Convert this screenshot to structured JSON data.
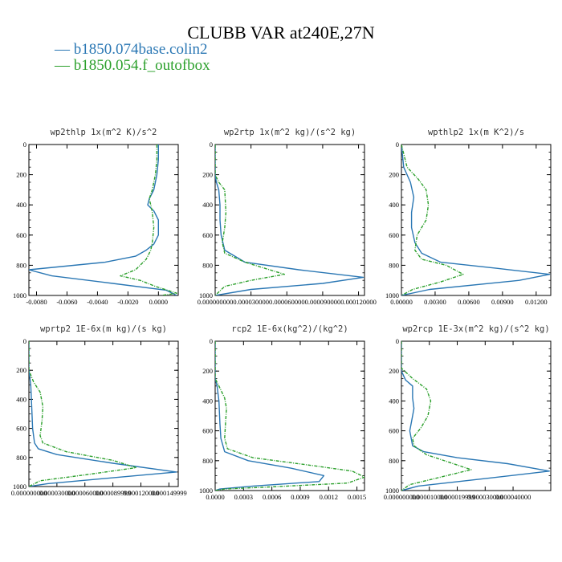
{
  "title": "CLUBB VAR at240E,27N",
  "legend": [
    {
      "label": "b1850.074base.colin2",
      "color": "#2a77b4"
    },
    {
      "label": "b1850.054.f_outofbox",
      "color": "#2ca02c"
    }
  ],
  "chart_data": [
    {
      "type": "line",
      "title": "wp2thlp  1x(m^2 K)/s^2",
      "xlim": [
        -0.0085,
        0.0013
      ],
      "ylim": [
        1000,
        0
      ],
      "xticks": [
        -0.008,
        -0.006,
        -0.004,
        -0.002,
        0.0
      ],
      "xtick_labels": [
        "-0.0080",
        "-0.0060",
        "-0.0040",
        "-0.0020",
        "0.0000"
      ],
      "yticks": [
        0,
        200,
        400,
        600,
        800,
        1000
      ],
      "ytick_labels": [
        "0",
        "200",
        "400",
        "600",
        "800",
        "1000"
      ],
      "series": [
        {
          "color": "#2a77b4",
          "dashed": false,
          "x": [
            0.0,
            0.0,
            -0.0001,
            -0.0003,
            -0.0006,
            -0.0007,
            -0.0003,
            0.0,
            0.0,
            -0.0003,
            -0.0008,
            -0.0015,
            -0.0035,
            -0.0085,
            -0.007,
            -0.003,
            0.0005,
            0.0012
          ],
          "y": [
            0,
            100,
            200,
            300,
            360,
            400,
            440,
            500,
            600,
            660,
            700,
            740,
            780,
            830,
            870,
            920,
            965,
            1000
          ]
        },
        {
          "color": "#2ca02c",
          "dashed": true,
          "x": [
            -0.0001,
            -0.0001,
            -0.0002,
            -0.0004,
            -0.0006,
            -0.0005,
            -0.0004,
            -0.0003,
            -0.0004,
            -0.0005,
            -0.0008,
            -0.0015,
            -0.0025,
            -0.0012,
            -0.0002,
            0.0012,
            0.0002
          ],
          "y": [
            0,
            100,
            200,
            300,
            360,
            400,
            450,
            550,
            650,
            700,
            760,
            830,
            870,
            900,
            940,
            985,
            1000
          ]
        }
      ]
    },
    {
      "type": "line",
      "title": "wp2rtp  1x(m^2 kg)/(s^2 kg)",
      "xlim": [
        0.0,
        0.000125
      ],
      "ylim": [
        1000,
        0
      ],
      "xticks": [
        0.0,
        3e-05,
        6e-05,
        9e-05,
        0.00012
      ],
      "xtick_labels": [
        "0.000000000",
        "0.000030000",
        "0.000060000",
        "0.000090000",
        "0.000120000"
      ],
      "yticks": [
        0,
        200,
        400,
        600,
        800,
        1000
      ],
      "ytick_labels": [
        "0",
        "200",
        "400",
        "600",
        "800",
        "1000"
      ],
      "series": [
        {
          "color": "#2a77b4",
          "dashed": false,
          "x": [
            0.0,
            0.0,
            1e-06,
            3e-06,
            4e-06,
            4e-06,
            5e-06,
            8e-06,
            2.5e-05,
            7e-05,
            0.000124,
            9e-05,
            3e-05,
            0.0
          ],
          "y": [
            0,
            200,
            250,
            300,
            400,
            500,
            600,
            700,
            780,
            830,
            880,
            920,
            960,
            1000
          ]
        },
        {
          "color": "#2ca02c",
          "dashed": true,
          "x": [
            0.0,
            0.0,
            3e-06,
            8e-06,
            9e-06,
            8e-06,
            6e-06,
            8e-06,
            2.5e-05,
            5.8e-05,
            3e-05,
            8e-06,
            0.0
          ],
          "y": [
            0,
            200,
            250,
            300,
            450,
            550,
            650,
            720,
            780,
            860,
            900,
            940,
            1000
          ]
        }
      ]
    },
    {
      "type": "line",
      "title": "wpthlp2  1x(m K^2)/s",
      "xlim": [
        0.0,
        0.0133
      ],
      "ylim": [
        1000,
        0
      ],
      "xticks": [
        0.0,
        0.003,
        0.006,
        0.009,
        0.012
      ],
      "xtick_labels": [
        "0.00000",
        "0.00300",
        "0.00600",
        "0.00900",
        "0.01200"
      ],
      "yticks": [
        0,
        200,
        400,
        600,
        800,
        1000
      ],
      "ytick_labels": [
        "0",
        "200",
        "400",
        "600",
        "800",
        "1000"
      ],
      "series": [
        {
          "color": "#2a77b4",
          "dashed": false,
          "x": [
            0.0,
            0.0002,
            0.0008,
            0.0011,
            0.0009,
            0.0009,
            0.0012,
            0.0018,
            0.0035,
            0.0085,
            0.0132,
            0.0105,
            0.0025,
            0.0
          ],
          "y": [
            0,
            150,
            250,
            350,
            450,
            550,
            650,
            720,
            780,
            820,
            860,
            900,
            960,
            1000
          ]
        },
        {
          "color": "#2ca02c",
          "dashed": true,
          "x": [
            0.0,
            0.0005,
            0.0015,
            0.0022,
            0.0024,
            0.0022,
            0.0014,
            0.0012,
            0.0018,
            0.004,
            0.0055,
            0.0035,
            0.001,
            0.0
          ],
          "y": [
            0,
            150,
            230,
            300,
            400,
            500,
            600,
            700,
            760,
            800,
            860,
            910,
            960,
            1000
          ]
        }
      ]
    },
    {
      "type": "line",
      "title": "wprtp2  1E-6x(m kg)/(s kg)",
      "xlim": [
        0.0,
        0.00016
      ],
      "ylim": [
        1000,
        0
      ],
      "xticks": [
        0.0,
        3e-05,
        6e-05,
        9e-05,
        0.00012,
        0.00015
      ],
      "xtick_labels": [
        "0.000000000",
        "0.000030000",
        "0.000060000",
        "0.000089999",
        "0.000120000",
        "0.000149999"
      ],
      "yticks": [
        0,
        200,
        400,
        600,
        800,
        1000
      ],
      "ytick_labels": [
        "0",
        "200",
        "400",
        "600",
        "800",
        "1000"
      ],
      "series": [
        {
          "color": "#2a77b4",
          "dashed": false,
          "x": [
            0.0,
            0.0,
            2e-06,
            3e-06,
            4e-06,
            6e-06,
            1e-05,
            3e-05,
            9e-05,
            0.000158,
            9e-05,
            2e-05,
            0.0
          ],
          "y": [
            0,
            200,
            300,
            450,
            600,
            700,
            740,
            780,
            840,
            900,
            940,
            980,
            1000
          ]
        },
        {
          "color": "#2ca02c",
          "dashed": true,
          "x": [
            0.0,
            0.0,
            5e-06,
            1.2e-05,
            1.5e-05,
            1.4e-05,
            1.2e-05,
            1.5e-05,
            4e-05,
            9e-05,
            0.000115,
            6e-05,
            1.2e-05,
            0.0
          ],
          "y": [
            0,
            200,
            280,
            350,
            450,
            550,
            650,
            700,
            760,
            820,
            870,
            920,
            960,
            1000
          ]
        }
      ]
    },
    {
      "type": "line",
      "title": "rcp2  1E-6x(kg^2)/(kg^2)",
      "xlim": [
        0.0,
        0.00158
      ],
      "ylim": [
        1000,
        0
      ],
      "xticks": [
        0.0,
        0.0003,
        0.0006,
        0.0009,
        0.0012,
        0.0015
      ],
      "xtick_labels": [
        "0.0000",
        "0.0003",
        "0.0006",
        "0.0009",
        "0.0012",
        "0.0015"
      ],
      "yticks": [
        0,
        200,
        400,
        600,
        800,
        1000
      ],
      "ytick_labels": [
        "0",
        "200",
        "400",
        "600",
        "800",
        "1000"
      ],
      "series": [
        {
          "color": "#2a77b4",
          "dashed": false,
          "x": [
            0.0,
            0.0,
            2e-05,
            4e-05,
            5e-05,
            6e-05,
            0.0001,
            0.00035,
            0.0008,
            0.00115,
            0.0011,
            0.0004,
            5e-05,
            0.0
          ],
          "y": [
            0,
            250,
            300,
            400,
            550,
            650,
            740,
            800,
            850,
            900,
            940,
            970,
            990,
            1000
          ]
        },
        {
          "color": "#2ca02c",
          "dashed": true,
          "x": [
            0.0,
            0.0,
            4e-05,
            0.0001,
            0.00012,
            0.00011,
            0.0001,
            0.00013,
            0.0004,
            0.001,
            0.00145,
            0.00158,
            0.0014,
            0.0006,
            0.0001,
            0.0
          ],
          "y": [
            0,
            250,
            300,
            380,
            450,
            550,
            650,
            720,
            780,
            830,
            870,
            910,
            950,
            975,
            990,
            1000
          ]
        }
      ]
    },
    {
      "type": "line",
      "title": "wp2rcp  1E-3x(m^2 kg)/(s^2 kg)",
      "xlim": [
        0.0,
        5.35e-05
      ],
      "ylim": [
        1000,
        0
      ],
      "xticks": [
        0.0,
        1e-05,
        2e-05,
        3e-05,
        4e-05
      ],
      "xtick_labels": [
        "0.000000000",
        "0.000010000",
        "0.000019999",
        "0.000030000",
        "0.000040000"
      ],
      "yticks": [
        0,
        200,
        400,
        600,
        800,
        1000
      ],
      "ytick_labels": [
        "0",
        "200",
        "400",
        "600",
        "800",
        "1000"
      ],
      "series": [
        {
          "color": "#2a77b4",
          "dashed": false,
          "x": [
            0.0,
            0.0,
            1.5e-06,
            4e-06,
            4e-06,
            4.5e-06,
            4e-06,
            3e-06,
            4e-06,
            8e-06,
            2e-05,
            3.8e-05,
            5.3e-05,
            3e-05,
            6e-06,
            0.0
          ],
          "y": [
            0,
            200,
            260,
            300,
            380,
            450,
            500,
            600,
            700,
            740,
            780,
            820,
            870,
            920,
            970,
            1000
          ]
        },
        {
          "color": "#2ca02c",
          "dashed": true,
          "x": [
            0.0,
            0.0,
            4e-06,
            9e-06,
            1.05e-05,
            9.5e-06,
            7e-06,
            4e-06,
            4.5e-06,
            9e-06,
            1.7e-05,
            2.5e-05,
            1.4e-05,
            3e-06,
            0.0
          ],
          "y": [
            0,
            180,
            250,
            320,
            400,
            500,
            580,
            650,
            700,
            760,
            810,
            860,
            910,
            960,
            1000
          ]
        }
      ]
    }
  ]
}
